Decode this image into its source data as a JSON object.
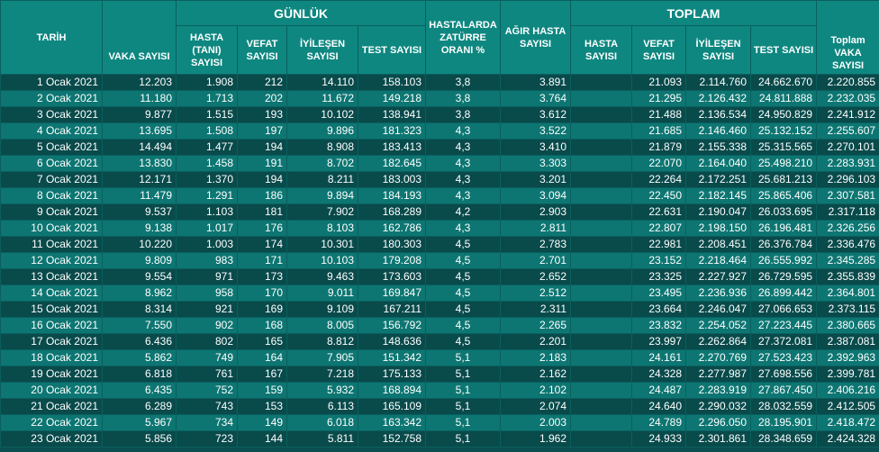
{
  "headers": {
    "tarih": "TARİH",
    "vaka": "VAKA SAYISI",
    "gunluk": "GÜNLÜK",
    "hastalarda": "HASTALARDA ZATÜRRE ORANI %",
    "agir": "AĞIR HASTA SAYISI",
    "toplam": "TOPLAM",
    "toplam_vaka": "Toplam VAKA SAYISI",
    "g_hasta": "HASTA (TANI) SAYISI",
    "g_vefat": "VEFAT SAYISI",
    "g_iyilesen": "İYİLEŞEN SAYISI",
    "g_test": "TEST SAYISI",
    "t_hasta": "HASTA SAYISI",
    "t_vefat": "VEFAT SAYISI",
    "t_iyilesen": "İYİLEŞEN SAYISI",
    "t_test": "TEST SAYISI"
  },
  "rows": [
    [
      "1 Ocak 2021",
      "12.203",
      "1.908",
      "212",
      "14.110",
      "158.103",
      "3,8",
      "3.891",
      "",
      "21.093",
      "2.114.760",
      "24.662.670",
      "2.220.855"
    ],
    [
      "2 Ocak 2021",
      "11.180",
      "1.713",
      "202",
      "11.672",
      "149.218",
      "3,8",
      "3.764",
      "",
      "21.295",
      "2.126.432",
      "24.811.888",
      "2.232.035"
    ],
    [
      "3 Ocak 2021",
      "9.877",
      "1.515",
      "193",
      "10.102",
      "138.941",
      "3,8",
      "3.612",
      "",
      "21.488",
      "2.136.534",
      "24.950.829",
      "2.241.912"
    ],
    [
      "4 Ocak 2021",
      "13.695",
      "1.508",
      "197",
      "9.896",
      "181.323",
      "4,3",
      "3.522",
      "",
      "21.685",
      "2.146.460",
      "25.132.152",
      "2.255.607"
    ],
    [
      "5 Ocak 2021",
      "14.494",
      "1.477",
      "194",
      "8.908",
      "183.413",
      "4,3",
      "3.410",
      "",
      "21.879",
      "2.155.338",
      "25.315.565",
      "2.270.101"
    ],
    [
      "6 Ocak 2021",
      "13.830",
      "1.458",
      "191",
      "8.702",
      "182.645",
      "4,3",
      "3.303",
      "",
      "22.070",
      "2.164.040",
      "25.498.210",
      "2.283.931"
    ],
    [
      "7 Ocak 2021",
      "12.171",
      "1.370",
      "194",
      "8.211",
      "183.003",
      "4,3",
      "3.201",
      "",
      "22.264",
      "2.172.251",
      "25.681.213",
      "2.296.103"
    ],
    [
      "8 Ocak 2021",
      "11.479",
      "1.291",
      "186",
      "9.894",
      "184.193",
      "4,3",
      "3.094",
      "",
      "22.450",
      "2.182.145",
      "25.865.406",
      "2.307.581"
    ],
    [
      "9 Ocak 2021",
      "9.537",
      "1.103",
      "181",
      "7.902",
      "168.289",
      "4,2",
      "2.903",
      "",
      "22.631",
      "2.190.047",
      "26.033.695",
      "2.317.118"
    ],
    [
      "10 Ocak 2021",
      "9.138",
      "1.017",
      "176",
      "8.103",
      "162.786",
      "4,3",
      "2.811",
      "",
      "22.807",
      "2.198.150",
      "26.196.481",
      "2.326.256"
    ],
    [
      "11 Ocak 2021",
      "10.220",
      "1.003",
      "174",
      "10.301",
      "180.303",
      "4,5",
      "2.783",
      "",
      "22.981",
      "2.208.451",
      "26.376.784",
      "2.336.476"
    ],
    [
      "12 Ocak 2021",
      "9.809",
      "983",
      "171",
      "10.103",
      "179.208",
      "4,5",
      "2.701",
      "",
      "23.152",
      "2.218.464",
      "26.555.992",
      "2.345.285"
    ],
    [
      "13 Ocak 2021",
      "9.554",
      "971",
      "173",
      "9.463",
      "173.603",
      "4,5",
      "2.652",
      "",
      "23.325",
      "2.227.927",
      "26.729.595",
      "2.355.839"
    ],
    [
      "14 Ocak 2021",
      "8.962",
      "958",
      "170",
      "9.011",
      "169.847",
      "4,5",
      "2.512",
      "",
      "23.495",
      "2.236.936",
      "26.899.442",
      "2.364.801"
    ],
    [
      "15 Ocak 2021",
      "8.314",
      "921",
      "169",
      "9.109",
      "167.211",
      "4,5",
      "2.311",
      "",
      "23.664",
      "2.246.047",
      "27.066.653",
      "2.373.115"
    ],
    [
      "16 Ocak 2021",
      "7.550",
      "902",
      "168",
      "8.005",
      "156.792",
      "4,5",
      "2.265",
      "",
      "23.832",
      "2.254.052",
      "27.223.445",
      "2.380.665"
    ],
    [
      "17 Ocak 2021",
      "6.436",
      "802",
      "165",
      "8.812",
      "148.636",
      "4,5",
      "2.201",
      "",
      "23.997",
      "2.262.864",
      "27.372.081",
      "2.387.081"
    ],
    [
      "18 Ocak 2021",
      "5.862",
      "749",
      "164",
      "7.905",
      "151.342",
      "5,1",
      "2.183",
      "",
      "24.161",
      "2.270.769",
      "27.523.423",
      "2.392.963"
    ],
    [
      "19 Ocak 2021",
      "6.818",
      "761",
      "167",
      "7.218",
      "175.133",
      "5,1",
      "2.162",
      "",
      "24.328",
      "2.277.987",
      "27.698.556",
      "2.399.781"
    ],
    [
      "20 Ocak 2021",
      "6.435",
      "752",
      "159",
      "5.932",
      "168.894",
      "5,1",
      "2.102",
      "",
      "24.487",
      "2.283.919",
      "27.867.450",
      "2.406.216"
    ],
    [
      "21 Ocak 2021",
      "6.289",
      "743",
      "153",
      "6.113",
      "165.109",
      "5,1",
      "2.074",
      "",
      "24.640",
      "2.290.032",
      "28.032.559",
      "2.412.505"
    ],
    [
      "22 Ocak 2021",
      "5.967",
      "734",
      "149",
      "6.018",
      "163.342",
      "5,1",
      "2.003",
      "",
      "24.789",
      "2.296.050",
      "28.195.901",
      "2.418.472"
    ],
    [
      "23 Ocak 2021",
      "5.856",
      "723",
      "144",
      "5.811",
      "152.758",
      "5,1",
      "1.962",
      "",
      "24.933",
      "2.301.861",
      "28.348.659",
      "2.424.328"
    ]
  ]
}
